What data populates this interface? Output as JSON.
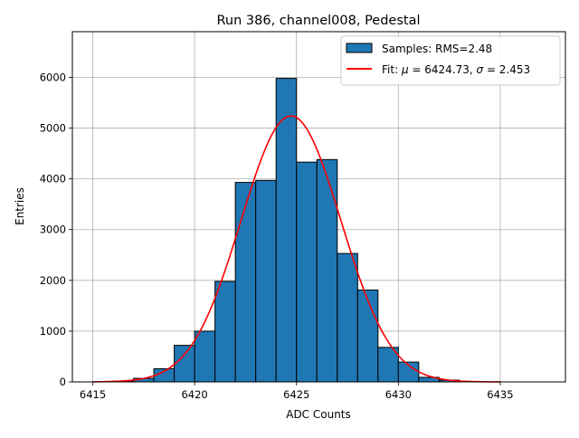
{
  "chart_data": {
    "type": "bar",
    "title": "Run 386, channel008, Pedestal",
    "xlabel": "ADC Counts",
    "ylabel": "Entries",
    "xlim": [
      6414.0,
      6438.2
    ],
    "ylim": [
      0,
      6900
    ],
    "xticks": [
      6415,
      6420,
      6425,
      6430,
      6435
    ],
    "yticks": [
      0,
      1000,
      2000,
      3000,
      4000,
      5000,
      6000
    ],
    "grid": true,
    "legend_position": "upper-right",
    "bar_color": "#1f77b4",
    "fit_color": "#ff0000",
    "bin_width": 1,
    "bins": [
      {
        "start": 6415,
        "count": 3
      },
      {
        "start": 6416,
        "count": 15
      },
      {
        "start": 6417,
        "count": 70
      },
      {
        "start": 6418,
        "count": 260
      },
      {
        "start": 6419,
        "count": 720
      },
      {
        "start": 6420,
        "count": 1000
      },
      {
        "start": 6421,
        "count": 1980
      },
      {
        "start": 6422,
        "count": 3930
      },
      {
        "start": 6423,
        "count": 3970
      },
      {
        "start": 6424,
        "count": 5980
      },
      {
        "start": 6425,
        "count": 4330
      },
      {
        "start": 6426,
        "count": 4380
      },
      {
        "start": 6427,
        "count": 2530
      },
      {
        "start": 6428,
        "count": 1810
      },
      {
        "start": 6429,
        "count": 680
      },
      {
        "start": 6430,
        "count": 390
      },
      {
        "start": 6431,
        "count": 90
      },
      {
        "start": 6432,
        "count": 35
      },
      {
        "start": 6433,
        "count": 8
      }
    ],
    "fit": {
      "mu": 6424.73,
      "sigma": 2.453,
      "amplitude": 5240,
      "x_range": [
        6415,
        6435
      ]
    },
    "legend": {
      "samples_label": "Samples: RMS=2.48",
      "fit_label_prefix": "Fit: ",
      "fit_mu_symbol": "μ",
      "fit_mu_text": " = 6424.73, ",
      "fit_sigma_symbol": "σ",
      "fit_sigma_text": " = 2.453"
    }
  }
}
